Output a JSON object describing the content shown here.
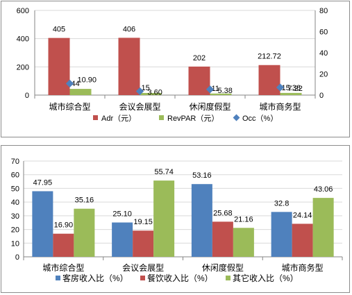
{
  "colors": {
    "red": "#C0504D",
    "green": "#9BBB59",
    "blue": "#4F81BD",
    "diamond": "#4F81BD",
    "grid": "#d9d9d9",
    "axis": "#868686"
  },
  "chart_data": [
    {
      "type": "bar",
      "categories": [
        "城市综合型",
        "会议会展型",
        "休闲度假型",
        "城市商务型"
      ],
      "ylim": [
        0,
        600
      ],
      "yticks": [
        0,
        200,
        400,
        600
      ],
      "y2lim": [
        0,
        80
      ],
      "y2ticks": [
        0,
        20,
        40,
        60,
        80
      ],
      "grid": true,
      "legend_position": "bottom",
      "series": [
        {
          "name": "Adr（元）",
          "values": [
            405,
            406,
            202,
            212.72
          ],
          "labels": [
            "405",
            "406",
            "202",
            "212.72"
          ],
          "axis": "left",
          "kind": "bar",
          "color": "#C0504D"
        },
        {
          "name": "RevPAR（元）",
          "values": [
            44,
            15,
            11,
            15.36
          ],
          "labels": [
            "44",
            "15",
            "11",
            "15.36"
          ],
          "axis": "left",
          "kind": "bar",
          "color": "#9BBB59"
        },
        {
          "name": "Occ（%）",
          "values": [
            10.9,
            3.6,
            5.38,
            7.22
          ],
          "labels": [
            "10.90",
            "3.60",
            "5.38",
            "7.22"
          ],
          "axis": "right",
          "kind": "marker",
          "color": "#4F81BD"
        }
      ]
    },
    {
      "type": "bar",
      "categories": [
        "城市综合型",
        "会议会展型",
        "休闲度假型",
        "城市商务型"
      ],
      "ylim": [
        0,
        70
      ],
      "yticks": [
        0,
        10,
        20,
        30,
        40,
        50,
        60,
        70
      ],
      "grid": true,
      "legend_position": "bottom",
      "series": [
        {
          "name": "客房收入比（%）",
          "values": [
            47.95,
            25.1,
            53.16,
            32.8
          ],
          "labels": [
            "47.95",
            "25.10",
            "53.16",
            "32.8"
          ],
          "color": "#4F81BD"
        },
        {
          "name": "餐饮收入比（%）",
          "values": [
            16.9,
            19.15,
            25.68,
            24.14
          ],
          "labels": [
            "16.90",
            "19.15",
            "25.68",
            "24.14"
          ],
          "color": "#C0504D"
        },
        {
          "name": "其它收入比（%）",
          "values": [
            35.16,
            55.74,
            21.16,
            43.06
          ],
          "labels": [
            "35.16",
            "55.74",
            "21.16",
            "43.06"
          ],
          "color": "#9BBB59"
        }
      ]
    }
  ]
}
